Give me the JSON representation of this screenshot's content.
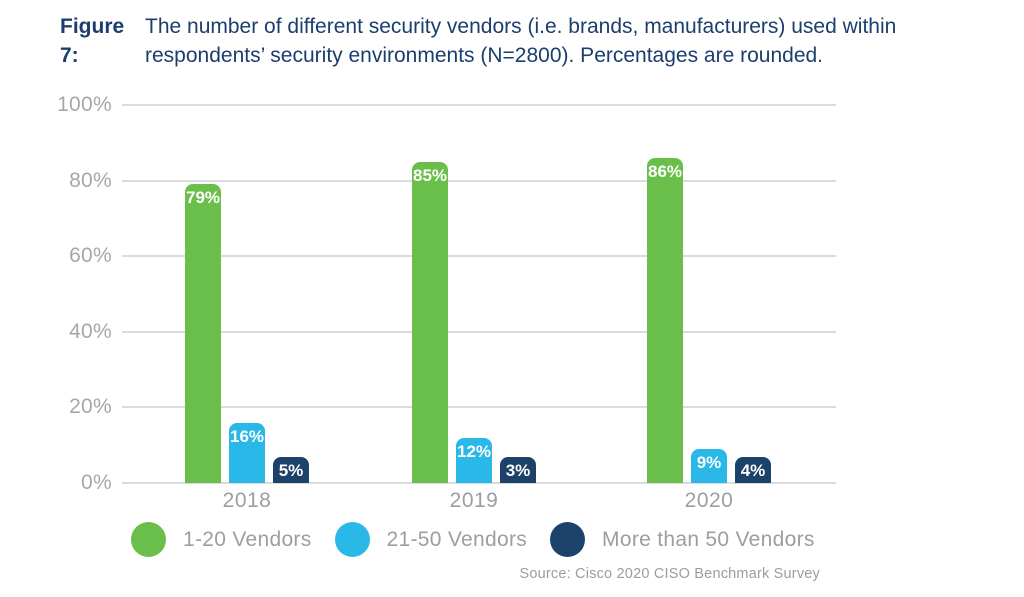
{
  "figure": {
    "label": "Figure 7:",
    "title_line1": "The number of different security vendors (i.e. brands, manufacturers) used within",
    "title_line2": "respondents’ security environments (N=2800). Percentages are rounded.",
    "source": "Source: Cisco 2020 CISO Benchmark Survey"
  },
  "chart_data": {
    "type": "bar",
    "title": "The number of different security vendors (i.e. brands, manufacturers) used within respondents’ security environments (N=2800). Percentages are rounded.",
    "categories": [
      "2018",
      "2019",
      "2020"
    ],
    "series": [
      {
        "name": "1-20 Vendors",
        "color": "#6abf4b",
        "values": [
          79,
          85,
          86
        ],
        "labels": [
          "79%",
          "85%",
          "86%"
        ]
      },
      {
        "name": "21-50 Vendors",
        "color": "#29b8e8",
        "values": [
          16,
          12,
          9
        ],
        "labels": [
          "16%",
          "12%",
          "9%"
        ]
      },
      {
        "name": "More than 50 Vendors",
        "color": "#1d4269",
        "values": [
          5,
          3,
          4
        ],
        "labels": [
          "5%",
          "3%",
          "4%"
        ]
      }
    ],
    "y_axis": {
      "min": 0,
      "max": 100,
      "tick_step": 20,
      "tick_labels": [
        "0%",
        "20%",
        "40%",
        "60%",
        "80%",
        "100%"
      ]
    },
    "xlabel": "",
    "ylabel": "",
    "grid": true,
    "legend_position": "bottom",
    "source": "Source: Cisco 2020 CISO Benchmark Survey"
  },
  "colors": {
    "title_navy": "#1c3e6e",
    "axis_text_gray": "#a4a7ac",
    "label_text_gray": "#9b9ea3",
    "gridline_gray": "#dadbdc",
    "bar_value_text": "#ffffff"
  }
}
